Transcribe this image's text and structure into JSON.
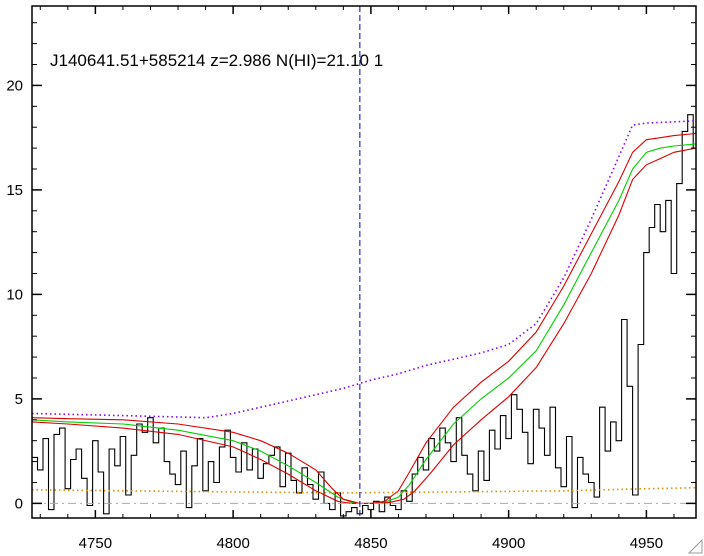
{
  "chart_data": {
    "type": "line",
    "title": "J140641.51+585214 z=2.986 N(HI)=21.10 1",
    "xlabel": "",
    "ylabel": "",
    "xlim": [
      4727,
      4968
    ],
    "ylim": [
      -0.7,
      23.8
    ],
    "x_ticks": [
      4750,
      4800,
      4850,
      4900,
      4950
    ],
    "y_ticks": [
      0,
      5,
      10,
      15,
      20
    ],
    "x_tick_labels": [
      "4750",
      "4800",
      "4850",
      "4900",
      "4950"
    ],
    "y_tick_labels": [
      "0",
      "5",
      "10",
      "15",
      "20"
    ],
    "grid": false,
    "legend": "none",
    "vline_x": 4846,
    "zero_line_y": 0,
    "series": [
      {
        "role": "flux",
        "color": "#000000",
        "style": "step",
        "x": [
          4727,
          4729,
          4731,
          4733,
          4735,
          4737,
          4739,
          4741,
          4743,
          4745,
          4747,
          4749,
          4751,
          4753,
          4755,
          4757,
          4759,
          4761,
          4763,
          4765,
          4767,
          4769,
          4771,
          4773,
          4775,
          4777,
          4779,
          4781,
          4783,
          4785,
          4787,
          4789,
          4791,
          4793,
          4795,
          4797,
          4799,
          4801,
          4803,
          4805,
          4807,
          4809,
          4811,
          4813,
          4815,
          4817,
          4819,
          4821,
          4823,
          4825,
          4827,
          4829,
          4831,
          4833,
          4835,
          4837,
          4839,
          4841,
          4843,
          4845,
          4847,
          4849,
          4851,
          4853,
          4855,
          4857,
          4859,
          4861,
          4863,
          4865,
          4867,
          4869,
          4871,
          4873,
          4875,
          4877,
          4879,
          4881,
          4883,
          4885,
          4887,
          4889,
          4891,
          4893,
          4895,
          4897,
          4899,
          4901,
          4903,
          4905,
          4907,
          4909,
          4911,
          4913,
          4915,
          4917,
          4919,
          4921,
          4923,
          4925,
          4927,
          4929,
          4931,
          4933,
          4935,
          4937,
          4939,
          4941,
          4943,
          4945,
          4947,
          4949,
          4951,
          4953,
          4955,
          4957,
          4959,
          4961,
          4963,
          4965,
          4967
        ],
        "y": [
          2.2,
          1.6,
          3.1,
          -0.3,
          3.3,
          3.6,
          0.7,
          2.1,
          2.6,
          1.2,
          -0.1,
          3.0,
          1.5,
          -0.5,
          2.6,
          1.8,
          3.2,
          0.4,
          2.3,
          3.8,
          3.4,
          4.1,
          2.9,
          3.6,
          2.0,
          1.4,
          0.9,
          2.5,
          -0.2,
          1.8,
          3.1,
          0.6,
          2.0,
          1.0,
          2.7,
          3.5,
          2.2,
          1.5,
          2.9,
          1.6,
          2.6,
          1.2,
          1.9,
          2.3,
          2.7,
          0.8,
          2.4,
          1.1,
          0.5,
          1.7,
          0.9,
          0.2,
          1.5,
          0.0,
          -0.3,
          0.5,
          -0.6,
          -0.4,
          -0.2,
          -0.5,
          -0.1,
          -0.3,
          0.1,
          -0.4,
          0.3,
          -0.1,
          -0.3,
          0.6,
          0.1,
          1.4,
          2.2,
          1.6,
          3.1,
          2.5,
          3.6,
          2.9,
          2.0,
          4.1,
          2.3,
          1.4,
          0.6,
          2.5,
          1.1,
          3.5,
          2.6,
          4.2,
          3.1,
          5.2,
          4.5,
          3.4,
          1.9,
          4.5,
          3.6,
          2.3,
          4.6,
          1.7,
          0.8,
          3.2,
          -0.2,
          2.2,
          1.4,
          1.0,
          0.3,
          4.6,
          2.5,
          3.9,
          3.0,
          8.8,
          5.6,
          0.4,
          7.6,
          12.0,
          13.2,
          14.3,
          13.0,
          14.5,
          11.0,
          15.3,
          17.8,
          18.6,
          17.0
        ]
      },
      {
        "role": "model",
        "color": "#00d000",
        "style": "line",
        "x": [
          4727,
          4740,
          4760,
          4780,
          4800,
          4810,
          4820,
          4830,
          4838,
          4843,
          4846,
          4850,
          4855,
          4860,
          4864,
          4870,
          4880,
          4890,
          4900,
          4910,
          4920,
          4930,
          4940,
          4945,
          4950,
          4955,
          4960,
          4968
        ],
        "y": [
          4.0,
          3.9,
          3.8,
          3.5,
          3.0,
          2.5,
          1.8,
          1.0,
          0.3,
          0.05,
          0.0,
          0.0,
          0.05,
          0.3,
          0.9,
          2.1,
          3.8,
          5.0,
          6.0,
          7.3,
          9.5,
          12.0,
          14.5,
          16.0,
          16.8,
          17.0,
          17.1,
          17.2
        ]
      },
      {
        "role": "model_upper",
        "color": "#e00000",
        "style": "line",
        "x": [
          4727,
          4740,
          4760,
          4780,
          4800,
          4810,
          4820,
          4830,
          4836,
          4840,
          4846,
          4850,
          4855,
          4860,
          4864,
          4870,
          4880,
          4890,
          4900,
          4910,
          4920,
          4930,
          4940,
          4945,
          4950,
          4955,
          4960,
          4968
        ],
        "y": [
          4.1,
          4.05,
          4.0,
          3.8,
          3.4,
          3.0,
          2.4,
          1.6,
          0.7,
          0.2,
          0.0,
          0.0,
          0.1,
          0.6,
          1.5,
          2.9,
          4.6,
          5.8,
          6.8,
          8.2,
          10.4,
          12.9,
          15.4,
          16.8,
          17.4,
          17.5,
          17.6,
          17.7
        ]
      },
      {
        "role": "model_lower",
        "color": "#e00000",
        "style": "line",
        "x": [
          4727,
          4740,
          4760,
          4780,
          4800,
          4810,
          4820,
          4830,
          4838,
          4843,
          4846,
          4852,
          4857,
          4862,
          4866,
          4872,
          4880,
          4890,
          4900,
          4910,
          4920,
          4930,
          4940,
          4945,
          4950,
          4955,
          4960,
          4968
        ],
        "y": [
          3.9,
          3.8,
          3.6,
          3.3,
          2.7,
          2.1,
          1.4,
          0.6,
          0.1,
          0.0,
          0.0,
          0.0,
          0.05,
          0.2,
          0.6,
          1.5,
          2.8,
          4.0,
          5.1,
          6.5,
          8.6,
          11.0,
          13.8,
          15.5,
          16.2,
          16.5,
          16.8,
          17.0
        ]
      },
      {
        "role": "continuum",
        "color": "#8800ff",
        "style": "dotted",
        "x": [
          4727,
          4760,
          4790,
          4800,
          4810,
          4820,
          4830,
          4840,
          4850,
          4860,
          4870,
          4880,
          4890,
          4900,
          4910,
          4920,
          4930,
          4940,
          4945,
          4950,
          4968
        ],
        "y": [
          4.3,
          4.2,
          4.1,
          4.3,
          4.6,
          4.9,
          5.2,
          5.5,
          5.9,
          6.2,
          6.6,
          6.9,
          7.2,
          7.6,
          8.6,
          10.8,
          13.6,
          16.6,
          18.1,
          18.2,
          18.3
        ]
      },
      {
        "role": "error",
        "color": "#e09000",
        "style": "dotted",
        "x": [
          4727,
          4760,
          4800,
          4840,
          4880,
          4920,
          4950,
          4968
        ],
        "y": [
          0.65,
          0.6,
          0.55,
          0.5,
          0.55,
          0.6,
          0.7,
          0.75
        ]
      }
    ]
  }
}
